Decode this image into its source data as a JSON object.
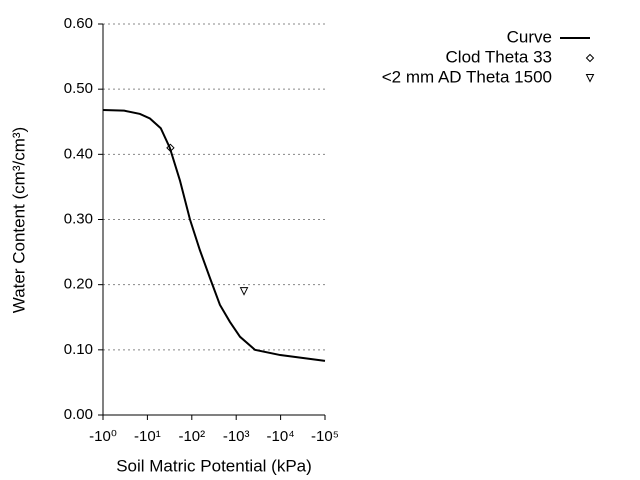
{
  "chart_data": {
    "type": "line",
    "xlabel": "Soil Matric Potential (kPa)",
    "ylabel": "Water Content (cm³/cm³)",
    "xscale": "log",
    "xlim": [
      1,
      100000
    ],
    "xticks": [
      {
        "value": 1,
        "label": "-10⁰"
      },
      {
        "value": 10,
        "label": "-10¹"
      },
      {
        "value": 100,
        "label": "-10²"
      },
      {
        "value": 1000,
        "label": "-10³"
      },
      {
        "value": 10000,
        "label": "-10⁴"
      },
      {
        "value": 100000,
        "label": "-10⁵"
      }
    ],
    "ylim": [
      0,
      0.6
    ],
    "yticks": [
      {
        "value": 0,
        "label": "0.00"
      },
      {
        "value": 0.1,
        "label": "0.10"
      },
      {
        "value": 0.2,
        "label": "0.20"
      },
      {
        "value": 0.3,
        "label": "0.30"
      },
      {
        "value": 0.4,
        "label": "0.40"
      },
      {
        "value": 0.5,
        "label": "0.50"
      },
      {
        "value": 0.6,
        "label": "0.60"
      }
    ],
    "grid": true,
    "legend": "top-right",
    "series": [
      {
        "name": "Curve",
        "color": "#000000",
        "style": "line",
        "x": [
          1,
          3,
          6.8,
          11.4,
          20,
          32,
          54,
          91,
          152,
          257,
          430,
          720,
          1220,
          2650,
          9800,
          100000
        ],
        "values": [
          0.468,
          0.467,
          0.462,
          0.455,
          0.44,
          0.41,
          0.36,
          0.3,
          0.253,
          0.21,
          0.169,
          0.143,
          0.12,
          0.1,
          0.092,
          0.083
        ]
      },
      {
        "name": "Clod Theta 33",
        "color": "#000000",
        "style": "marker",
        "marker": "diamond",
        "x": [
          33
        ],
        "values": [
          0.41
        ]
      },
      {
        "name": "<2 mm AD Theta 1500",
        "color": "#000000",
        "style": "marker",
        "marker": "triangle-down",
        "x": [
          1500
        ],
        "values": [
          0.19
        ]
      }
    ]
  }
}
